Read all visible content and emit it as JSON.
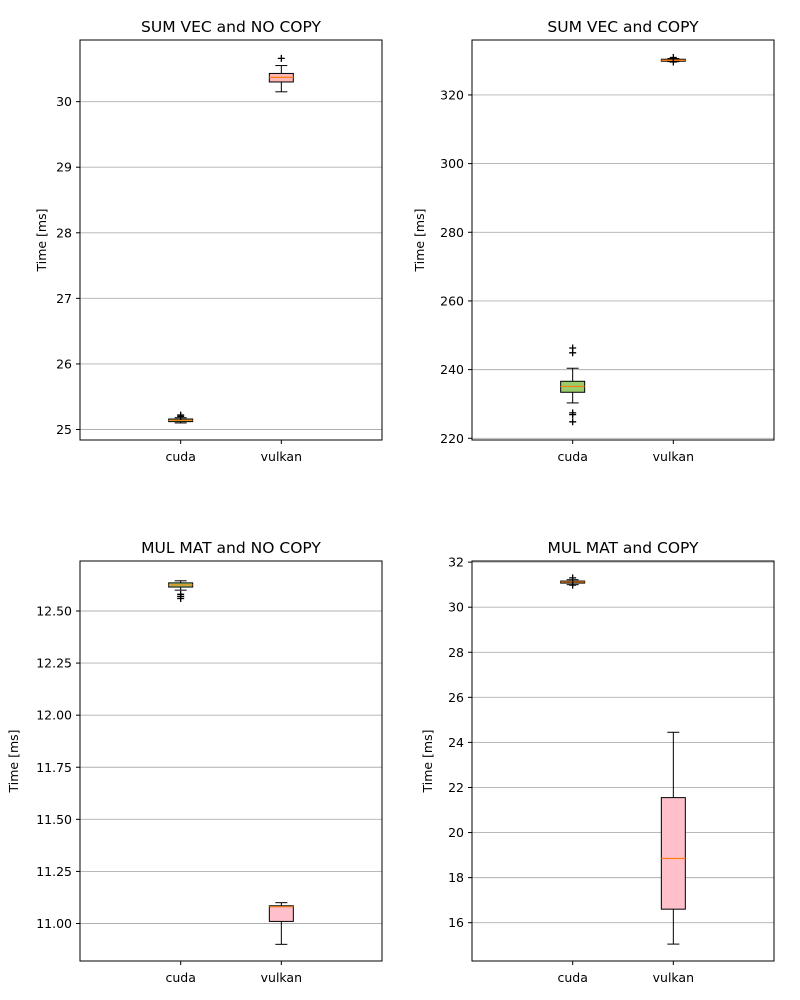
{
  "chart_data": [
    {
      "type": "box",
      "title": "SUM VEC and NO COPY",
      "xlabel": "",
      "ylabel": "Time [ms]",
      "ylim": [
        24.84,
        30.94
      ],
      "yticks": [
        25,
        26,
        27,
        28,
        29,
        30
      ],
      "ytick_labels": [
        "25",
        "26",
        "27",
        "28",
        "29",
        "30"
      ],
      "grid": "y",
      "categories": [
        "cuda",
        "vulkan"
      ],
      "boxes": [
        {
          "name": "cuda",
          "whislo": 25.1,
          "q1": 25.12,
          "med": 25.14,
          "q3": 25.16,
          "whishi": 25.18,
          "fliers": [
            25.2,
            25.22
          ],
          "fill": "#9acd6a"
        },
        {
          "name": "vulkan",
          "whislo": 30.15,
          "q1": 30.3,
          "med": 30.37,
          "q3": 30.43,
          "whishi": 30.55,
          "fliers": [
            30.66
          ],
          "fill": "#ffb6b6"
        }
      ]
    },
    {
      "type": "box",
      "title": "SUM VEC and COPY",
      "xlabel": "",
      "ylabel": "Time [ms]",
      "ylim": [
        219.5,
        336.0
      ],
      "yticks": [
        220,
        240,
        260,
        280,
        300,
        320
      ],
      "ytick_labels": [
        "220",
        "240",
        "260",
        "280",
        "300",
        "320"
      ],
      "grid": "y",
      "categories": [
        "cuda",
        "vulkan"
      ],
      "boxes": [
        {
          "name": "cuda",
          "whislo": 230.3,
          "q1": 233.4,
          "med": 235.1,
          "q3": 236.6,
          "whishi": 240.4,
          "fliers": [
            224.8,
            226.9,
            227.4,
            244.9,
            246.3
          ],
          "fill": "#9acd6a"
        },
        {
          "name": "vulkan",
          "whislo": 329.7,
          "q1": 329.9,
          "med": 330.1,
          "q3": 330.4,
          "whishi": 330.6,
          "fliers": [
            329.6,
            330.9
          ],
          "fill": "#ffb6b6"
        }
      ]
    },
    {
      "type": "box",
      "title": "MUL MAT and NO COPY",
      "xlabel": "",
      "ylabel": "Time [ms]",
      "ylim": [
        10.82,
        12.74
      ],
      "yticks": [
        11.0,
        11.25,
        11.5,
        11.75,
        12.0,
        12.25,
        12.5
      ],
      "ytick_labels": [
        "11.00",
        "11.25",
        "11.50",
        "11.75",
        "12.00",
        "12.25",
        "12.50"
      ],
      "grid": "y",
      "categories": [
        "cuda",
        "vulkan"
      ],
      "boxes": [
        {
          "name": "cuda",
          "whislo": 12.6,
          "q1": 12.615,
          "med": 12.625,
          "q3": 12.635,
          "whishi": 12.645,
          "fliers": [
            12.58,
            12.57,
            12.56
          ],
          "fill": "#9acd6a"
        },
        {
          "name": "vulkan",
          "whislo": 10.9,
          "q1": 11.01,
          "med": 11.08,
          "q3": 11.085,
          "whishi": 11.1,
          "fliers": [],
          "fill": "#ffc0cb"
        }
      ]
    },
    {
      "type": "box",
      "title": "MUL MAT and COPY",
      "xlabel": "",
      "ylabel": "Time [ms]",
      "ylim": [
        14.3,
        32.05
      ],
      "yticks": [
        16,
        18,
        20,
        22,
        24,
        26,
        28,
        30,
        32
      ],
      "ytick_labels": [
        "16",
        "18",
        "20",
        "22",
        "24",
        "26",
        "28",
        "30",
        "32"
      ],
      "grid": "y",
      "categories": [
        "cuda",
        "vulkan"
      ],
      "boxes": [
        {
          "name": "cuda",
          "whislo": 31.0,
          "q1": 31.07,
          "med": 31.12,
          "q3": 31.16,
          "whishi": 31.22,
          "fliers": [
            30.98,
            31.3
          ],
          "fill": "#9acd6a"
        },
        {
          "name": "vulkan",
          "whislo": 15.05,
          "q1": 16.6,
          "med": 18.85,
          "q3": 21.55,
          "whishi": 24.45,
          "fliers": [],
          "fill": "#ffc0cb"
        }
      ]
    }
  ],
  "colors": {
    "median": "#ff7f0e",
    "grid": "#b0b0b0",
    "axis": "#000000"
  }
}
